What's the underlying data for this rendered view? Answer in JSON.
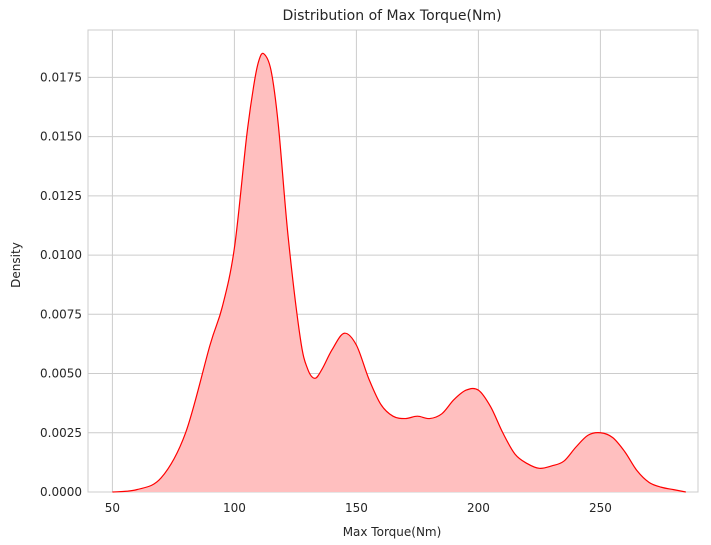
{
  "chart_data": {
    "type": "area",
    "title": "Distribution of Max Torque(Nm)",
    "xlabel": "Max Torque(Nm)",
    "ylabel": "Density",
    "xlim": [
      40,
      290
    ],
    "ylim": [
      0,
      0.0195
    ],
    "xticks": [
      50,
      100,
      150,
      200,
      250
    ],
    "yticks": [
      0.0,
      0.0025,
      0.005,
      0.0075,
      0.01,
      0.0125,
      0.015,
      0.0175
    ],
    "ytick_labels": [
      "0.0000",
      "0.0025",
      "0.0050",
      "0.0075",
      "0.0100",
      "0.0125",
      "0.0150",
      "0.0175"
    ],
    "grid": true,
    "colors": {
      "line": "#ff0000",
      "fill": "#ffbfbf",
      "grid": "#cccccc",
      "spine": "#cccccc"
    },
    "series": [
      {
        "x": [
          50,
          60,
          70,
          80,
          90,
          95,
          100,
          105,
          108,
          110,
          112,
          115,
          118,
          122,
          127,
          130,
          133,
          136,
          140,
          145,
          150,
          155,
          160,
          165,
          170,
          175,
          180,
          185,
          190,
          195,
          200,
          205,
          210,
          215,
          220,
          225,
          230,
          235,
          240,
          245,
          250,
          255,
          260,
          265,
          270,
          275,
          280,
          285
        ],
        "y": [
          0.0,
          0.0001,
          0.0006,
          0.0025,
          0.0062,
          0.0078,
          0.0103,
          0.015,
          0.0172,
          0.0182,
          0.0185,
          0.0178,
          0.0155,
          0.0108,
          0.0065,
          0.0052,
          0.0048,
          0.0052,
          0.006,
          0.0067,
          0.0062,
          0.0048,
          0.0037,
          0.0032,
          0.0031,
          0.0032,
          0.0031,
          0.0033,
          0.0039,
          0.0043,
          0.0043,
          0.0036,
          0.0025,
          0.0016,
          0.0012,
          0.001,
          0.0011,
          0.0013,
          0.0019,
          0.0024,
          0.0025,
          0.0023,
          0.0017,
          0.0009,
          0.0004,
          0.0002,
          0.0001,
          0.0
        ]
      }
    ]
  }
}
